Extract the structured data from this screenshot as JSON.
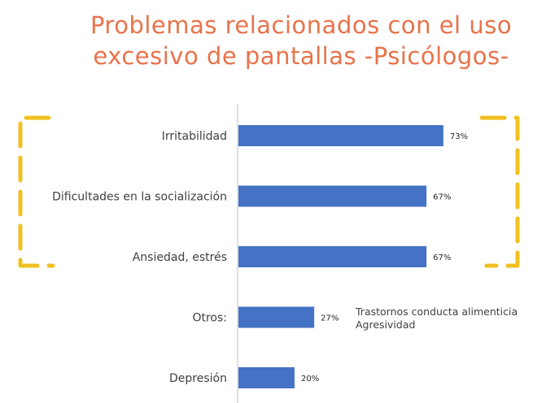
{
  "title": {
    "line1": "Problemas relacionados con el uso",
    "line2": "excesivo de pantallas -Psicólogos-"
  },
  "colors": {
    "title": "#e8734a",
    "bar": "#4472c4",
    "bracket": "#f0c020",
    "axis": "#bfbfbf"
  },
  "chart_data": {
    "type": "bar",
    "orientation": "horizontal",
    "categories": [
      "Irritabilidad",
      "Dificultades en la socialización",
      "Ansiedad, estrés",
      "Otros:",
      "Depresión"
    ],
    "values": [
      73,
      67,
      67,
      27,
      20
    ],
    "value_labels": [
      "73%",
      "67%",
      "67%",
      "27%",
      "20%"
    ],
    "unit": "%",
    "xlim": [
      0,
      100
    ],
    "grid": false,
    "annotations": [
      "Trastornos conducta alimenticia",
      "Agresividad"
    ]
  }
}
